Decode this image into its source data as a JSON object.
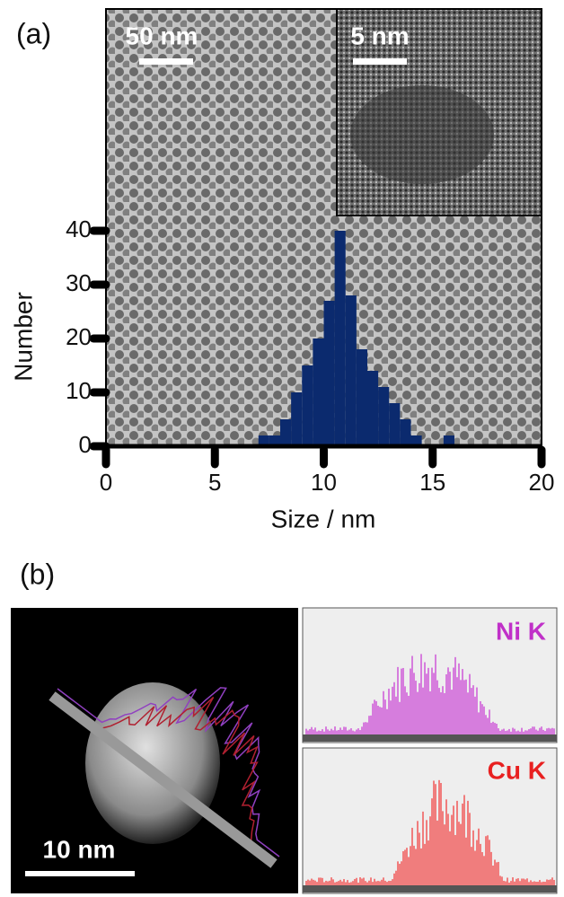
{
  "chart_data": {
    "type": "histogram",
    "xlabel": "Size / nm",
    "ylabel": "Number",
    "bins": [
      7,
      7.5,
      8,
      8.5,
      9,
      9.5,
      10,
      10.5,
      11,
      11.5,
      12,
      12.5,
      13,
      13.5,
      14,
      14.5,
      15,
      15.5,
      16
    ],
    "values": [
      2,
      2,
      5,
      10,
      15,
      20,
      27,
      40,
      28,
      18,
      14,
      11,
      8,
      5,
      2,
      0,
      0,
      2
    ],
    "color": "#0b2a6e",
    "xlim": [
      0,
      20
    ],
    "xticks": [
      0,
      5,
      10,
      15,
      20
    ],
    "ylim": [
      0,
      40
    ],
    "yticks": [
      0,
      10,
      20,
      30,
      40
    ]
  },
  "panel_labels": [
    "(a)",
    "(b)"
  ],
  "scale_bars": [
    "50 nm",
    "5 nm",
    "10 nm"
  ],
  "eds": {
    "elements": [
      "Ni K",
      "Cu K"
    ]
  }
}
